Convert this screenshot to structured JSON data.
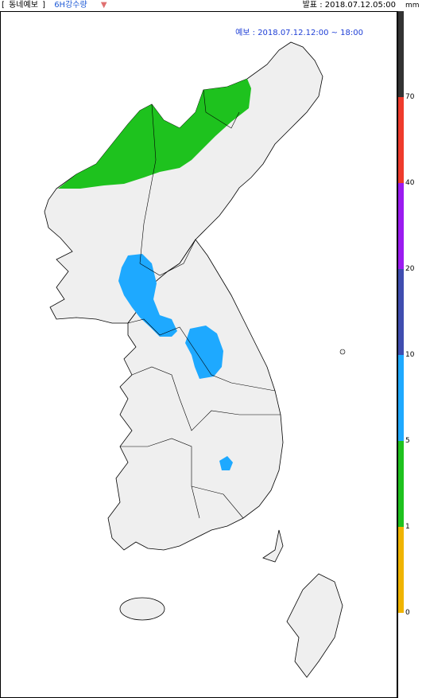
{
  "header": {
    "bracket_open": "[",
    "title": "동네예보",
    "bracket_close": "]",
    "variable": "6H강수량",
    "dropdown_icon": "triangle-down-icon",
    "issued": "발표 : 2018.07.12.05:00"
  },
  "map": {
    "forecast_time": "예보 : 2018.07.12.12:00 ~ 18:00",
    "precipitation_areas": [
      {
        "region": "north-east highlands (Ryanggang / North Hamgyong)",
        "class_mm": "1-5",
        "color": "#1ec21e"
      },
      {
        "region": "Hwanghae / Kaesong / Gyeonggi border",
        "class_mm": "5-10",
        "color": "#1ea9ff"
      },
      {
        "region": "North Chungcheong / Gangwon south",
        "class_mm": "5-10",
        "color": "#1ea9ff"
      },
      {
        "region": "North Gyeongsang (Daegu area)",
        "class_mm": "5-10",
        "color": "#1ea9ff"
      }
    ],
    "land_color": "#efefef",
    "sea_color": "#ffffff"
  },
  "legend": {
    "unit": "mm",
    "ticks": [
      "70",
      "40",
      "20",
      "10",
      "5",
      "1",
      "0"
    ],
    "colors": {
      "above_70": "#333333",
      "40_70": "#ef3b2c",
      "20_40": "#9b1bf0",
      "10_20": "#3f4db0",
      "5_10": "#1ea9ff",
      "1_5": "#1ec21e",
      "0_1": "#f0b400",
      "zero": "#ffffff"
    }
  }
}
